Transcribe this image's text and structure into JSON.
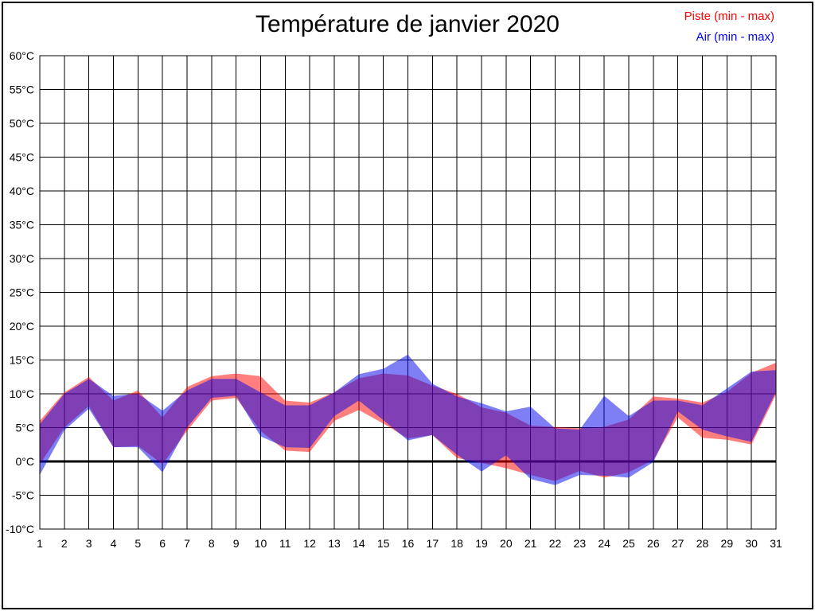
{
  "title": "Température de janvier 2020",
  "legend": [
    {
      "label": "Piste (min - max)",
      "color": "#ff0000"
    },
    {
      "label": "Air (min - max)",
      "color": "#0000ff"
    }
  ],
  "chart_data": {
    "type": "area",
    "subtype": "min-max-bands",
    "title": "Température de janvier 2020",
    "xlabel": "",
    "ylabel": "",
    "grid": true,
    "legend_position": "top-right",
    "xlim": [
      1,
      31
    ],
    "ylim": [
      -10,
      60
    ],
    "zero_line_value": 0,
    "y_tick_suffix": "°C",
    "y_ticks": [
      -10,
      -5,
      0,
      5,
      10,
      15,
      20,
      25,
      30,
      35,
      40,
      45,
      50,
      55,
      60
    ],
    "x": [
      1,
      2,
      3,
      4,
      5,
      6,
      7,
      8,
      9,
      10,
      11,
      12,
      13,
      14,
      15,
      16,
      17,
      18,
      19,
      20,
      21,
      22,
      23,
      24,
      25,
      26,
      27,
      28,
      29,
      30,
      31
    ],
    "series": [
      {
        "name": "Piste (min - max)",
        "band_color": "#ff0000",
        "fill_opacity": 0.5,
        "max": [
          6.0,
          10.2,
          12.5,
          9.0,
          10.5,
          6.5,
          11.0,
          12.6,
          13.0,
          12.6,
          9.0,
          8.7,
          10.2,
          12.3,
          13.0,
          12.7,
          11.2,
          10.0,
          8.0,
          7.2,
          5.3,
          5.1,
          4.9,
          5.1,
          6.2,
          9.6,
          9.3,
          8.7,
          10.3,
          13.1,
          14.6
        ],
        "min": [
          -0.4,
          5.0,
          8.2,
          2.1,
          2.3,
          -0.4,
          4.5,
          9.0,
          9.4,
          4.5,
          1.6,
          1.4,
          6.0,
          7.6,
          5.6,
          3.4,
          3.9,
          0.5,
          -0.2,
          -1.0,
          -2.0,
          -2.9,
          -1.4,
          -2.4,
          -1.6,
          0.2,
          6.5,
          3.5,
          3.2,
          2.5,
          9.9
        ]
      },
      {
        "name": "Air (min - max)",
        "band_color": "#0000eb",
        "fill_opacity": 0.5,
        "max": [
          5.5,
          10.0,
          12.2,
          9.7,
          10.0,
          7.5,
          10.5,
          12.2,
          12.2,
          10.2,
          8.3,
          8.3,
          10.2,
          12.9,
          13.7,
          15.8,
          11.5,
          9.6,
          8.6,
          7.4,
          8.1,
          4.9,
          4.7,
          9.7,
          6.7,
          9.0,
          9.0,
          8.3,
          10.8,
          13.3,
          13.5
        ],
        "min": [
          -2.0,
          4.6,
          7.8,
          2.1,
          2.1,
          -1.6,
          5.0,
          9.4,
          9.7,
          3.7,
          2.1,
          2.0,
          6.7,
          9.0,
          6.1,
          3.1,
          3.9,
          1.0,
          -1.5,
          0.9,
          -2.6,
          -3.5,
          -2.0,
          -2.1,
          -2.4,
          -0.1,
          7.4,
          4.7,
          3.7,
          2.9,
          10.3
        ]
      }
    ]
  }
}
